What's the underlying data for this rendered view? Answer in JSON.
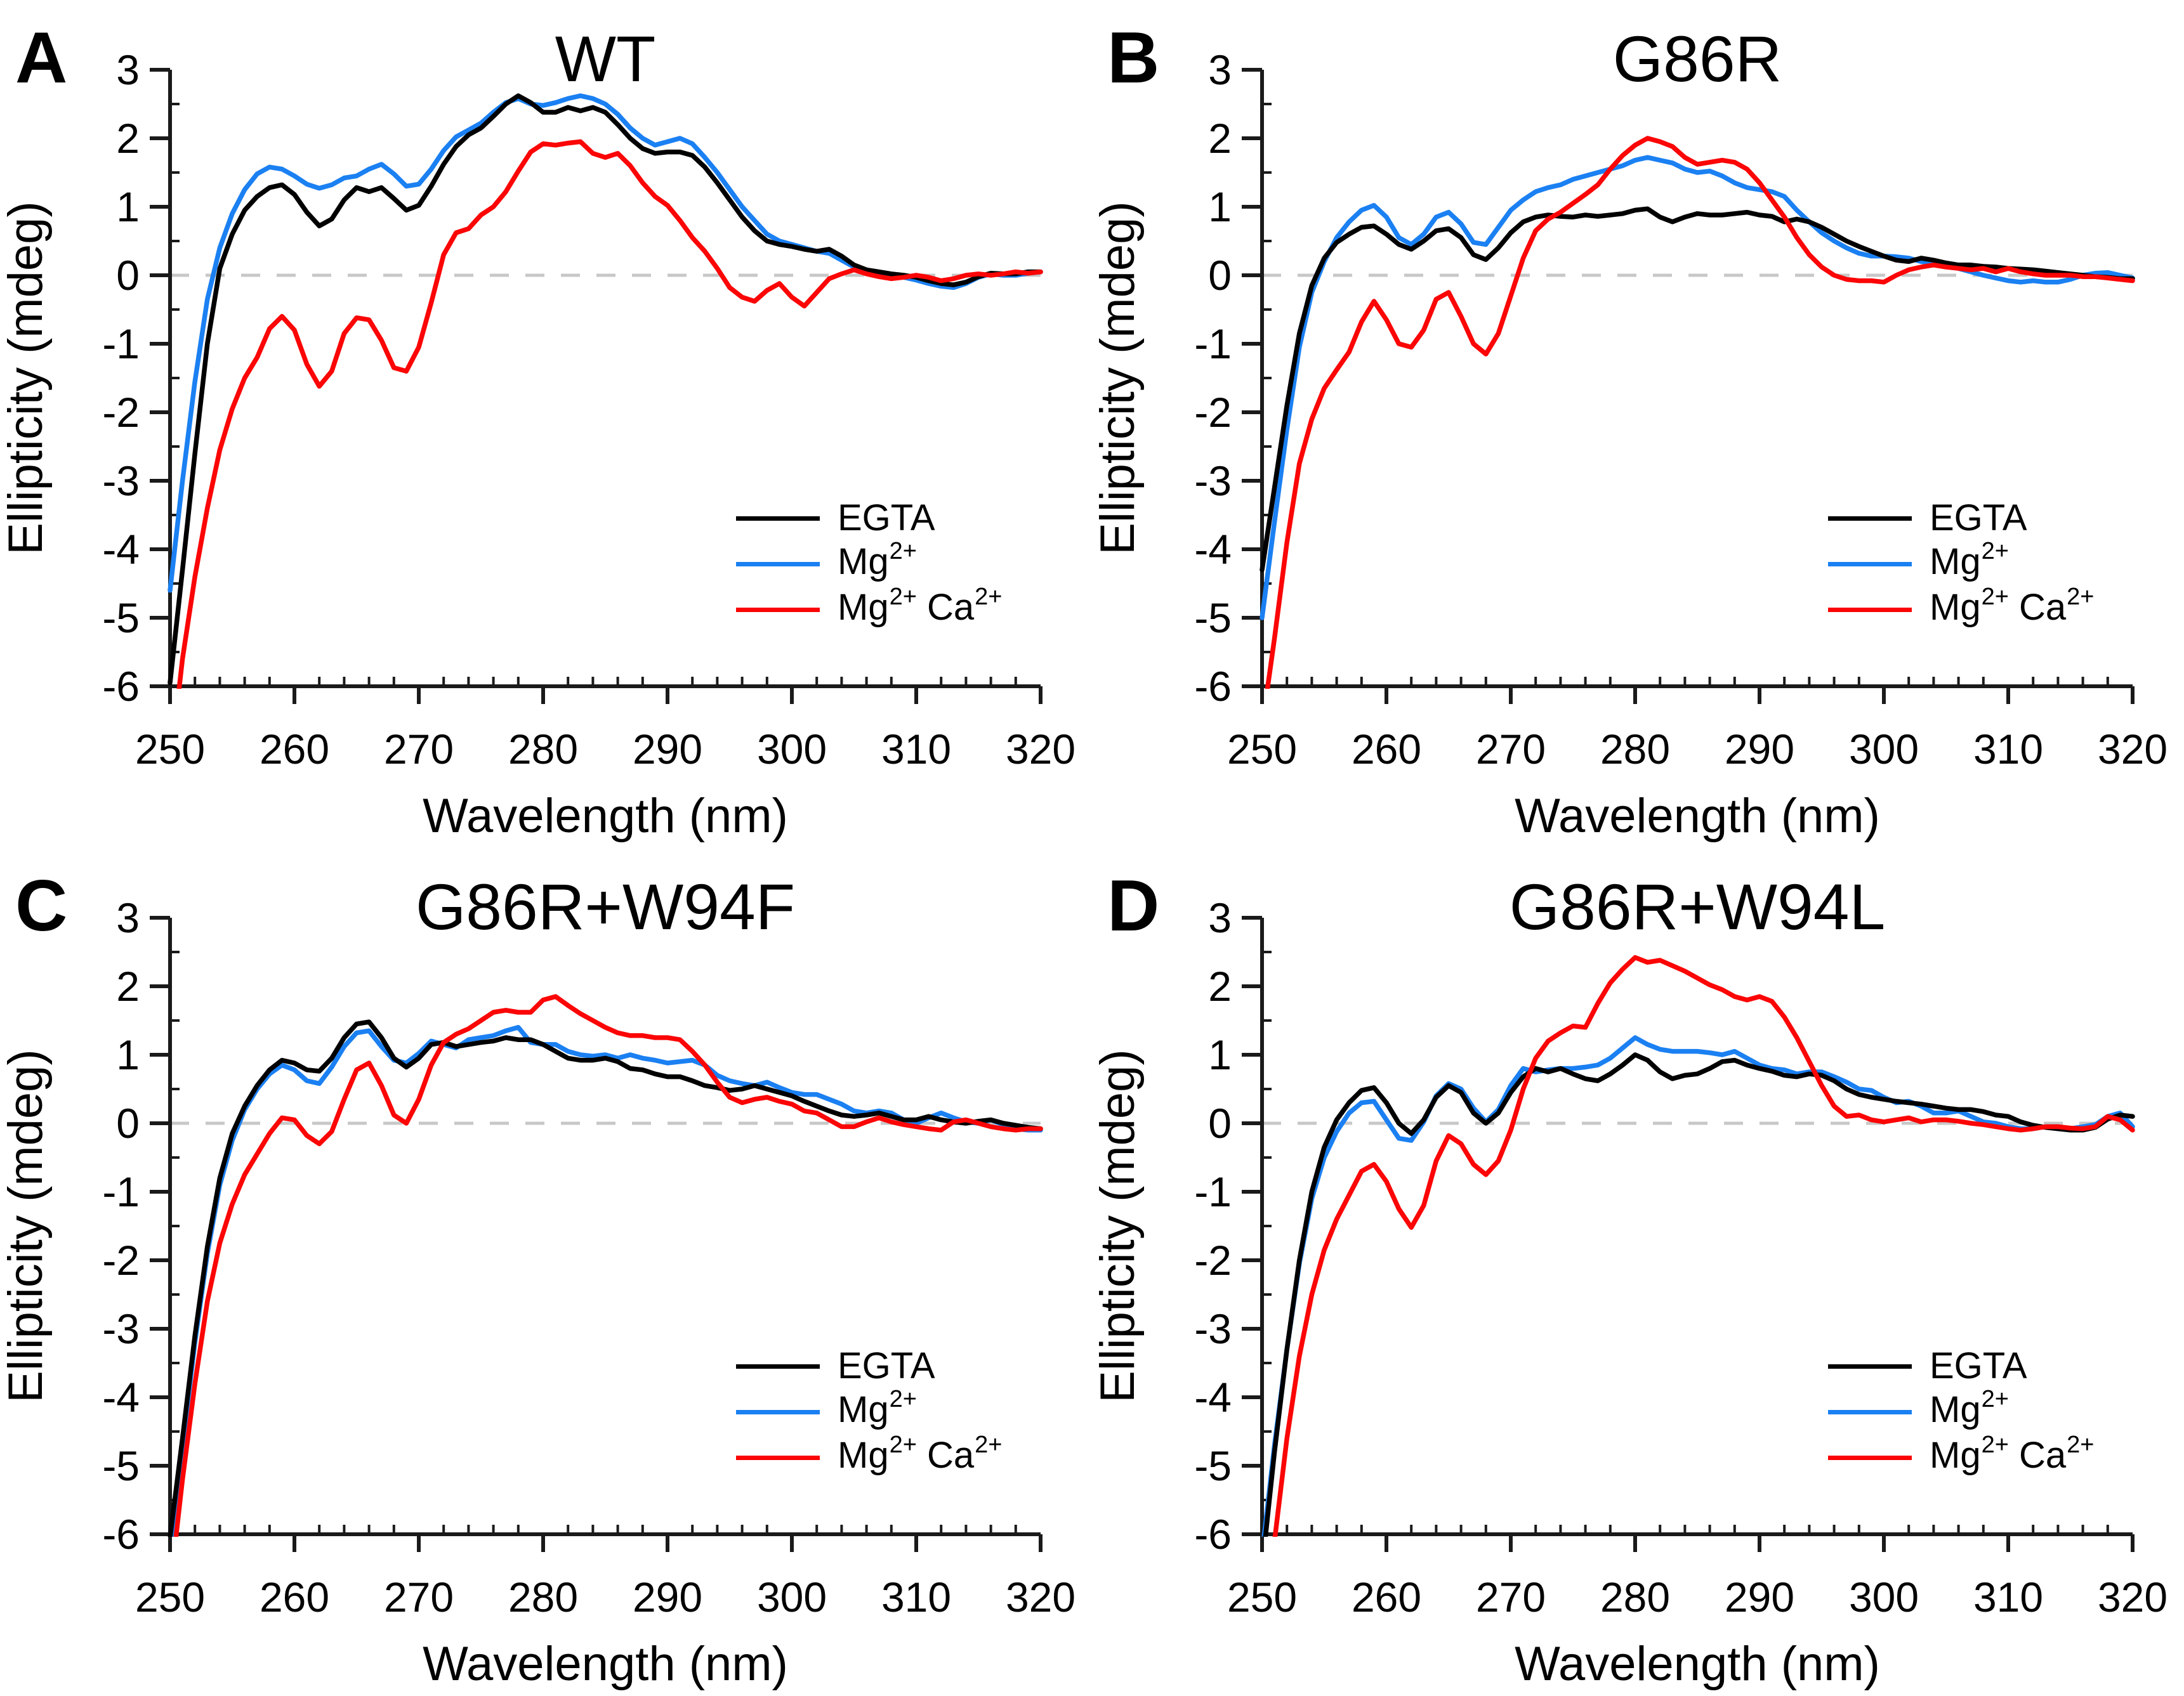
{
  "figure": {
    "panel_letters": [
      "A",
      "B",
      "C",
      "D"
    ],
    "colors": {
      "egta": "#000000",
      "mg": "#1b80f2",
      "mgca": "#fb0505",
      "axis": "#1a1a1a",
      "zero_line": "#c8c8c8"
    },
    "legend": {
      "position": "inside-right",
      "items": [
        {
          "name": "EGTA",
          "parts": [
            [
              "EGTA",
              0
            ]
          ]
        },
        {
          "name": "Mg2+",
          "parts": [
            [
              "Mg",
              0
            ],
            [
              "2+",
              1
            ]
          ]
        },
        {
          "name": "Mg2+ Ca2+",
          "parts": [
            [
              "Mg",
              0
            ],
            [
              "2+",
              1
            ],
            [
              " Ca",
              0
            ],
            [
              "2+",
              1
            ]
          ]
        }
      ]
    }
  },
  "chart_data": [
    {
      "type": "line",
      "panel": "A",
      "title": "WT",
      "xlabel": "Wavelength (nm)",
      "ylabel": "Ellipticity (mdeg)",
      "xlim": [
        250,
        320
      ],
      "ylim": [
        -6,
        3
      ],
      "x_major": 10,
      "x_minor": 2,
      "y_major": 1,
      "y_minor": 0.5,
      "grid": false,
      "zero_line_dashed": true,
      "x_start": 250,
      "x_step": 1,
      "series": [
        {
          "name": "EGTA",
          "color": "#000000",
          "values": [
            -5.95,
            -4.3,
            -2.6,
            -1.0,
            0.1,
            0.6,
            0.95,
            1.15,
            1.28,
            1.32,
            1.18,
            0.92,
            0.72,
            0.82,
            1.1,
            1.28,
            1.22,
            1.28,
            1.12,
            0.95,
            1.02,
            1.3,
            1.62,
            1.88,
            2.05,
            2.15,
            2.32,
            2.5,
            2.62,
            2.52,
            2.38,
            2.38,
            2.45,
            2.4,
            2.45,
            2.38,
            2.2,
            2.0,
            1.85,
            1.78,
            1.8,
            1.8,
            1.75,
            1.58,
            1.35,
            1.1,
            0.85,
            0.65,
            0.5,
            0.45,
            0.42,
            0.38,
            0.35,
            0.38,
            0.28,
            0.15,
            0.08,
            0.05,
            0.02,
            0.0,
            -0.03,
            -0.08,
            -0.12,
            -0.14,
            -0.1,
            -0.02,
            0.03,
            0.02,
            0.02,
            0.05,
            0.05
          ]
        },
        {
          "name": "Mg2+",
          "color": "#1b80f2",
          "values": [
            -4.6,
            -3.0,
            -1.55,
            -0.35,
            0.4,
            0.9,
            1.25,
            1.48,
            1.58,
            1.55,
            1.45,
            1.33,
            1.27,
            1.32,
            1.42,
            1.45,
            1.55,
            1.62,
            1.48,
            1.3,
            1.33,
            1.55,
            1.82,
            2.02,
            2.12,
            2.22,
            2.38,
            2.52,
            2.58,
            2.5,
            2.48,
            2.52,
            2.58,
            2.62,
            2.58,
            2.5,
            2.35,
            2.15,
            2.0,
            1.9,
            1.95,
            2.0,
            1.92,
            1.72,
            1.5,
            1.25,
            1.0,
            0.8,
            0.6,
            0.5,
            0.45,
            0.4,
            0.35,
            0.32,
            0.22,
            0.12,
            0.06,
            0.03,
            0.0,
            -0.03,
            -0.07,
            -0.12,
            -0.16,
            -0.18,
            -0.12,
            -0.03,
            0.02,
            0.0,
            0.0,
            0.03,
            0.05
          ]
        },
        {
          "name": "Mg2+ Ca2+",
          "color": "#fb0505",
          "values": [
            -7.2,
            -5.6,
            -4.4,
            -3.4,
            -2.55,
            -1.95,
            -1.5,
            -1.2,
            -0.78,
            -0.6,
            -0.8,
            -1.3,
            -1.62,
            -1.4,
            -0.85,
            -0.62,
            -0.65,
            -0.95,
            -1.35,
            -1.4,
            -1.05,
            -0.4,
            0.3,
            0.62,
            0.68,
            0.88,
            1.0,
            1.22,
            1.52,
            1.8,
            1.92,
            1.9,
            1.93,
            1.95,
            1.78,
            1.72,
            1.78,
            1.6,
            1.35,
            1.15,
            1.02,
            0.8,
            0.55,
            0.35,
            0.1,
            -0.18,
            -0.32,
            -0.38,
            -0.22,
            -0.12,
            -0.32,
            -0.45,
            -0.25,
            -0.05,
            0.02,
            0.08,
            0.02,
            -0.02,
            -0.05,
            -0.03,
            0.0,
            -0.03,
            -0.08,
            -0.05,
            0.0,
            0.02,
            0.0,
            0.02,
            0.05,
            0.03,
            0.05
          ]
        }
      ]
    },
    {
      "type": "line",
      "panel": "B",
      "title": "G86R",
      "xlabel": "Wavelength (nm)",
      "ylabel": "Ellipticity (mdeg)",
      "xlim": [
        250,
        320
      ],
      "ylim": [
        -6,
        3
      ],
      "x_major": 10,
      "x_minor": 2,
      "y_major": 1,
      "y_minor": 0.5,
      "grid": false,
      "zero_line_dashed": true,
      "x_start": 250,
      "x_step": 1,
      "series": [
        {
          "name": "EGTA",
          "color": "#000000",
          "values": [
            -4.3,
            -3.1,
            -1.9,
            -0.85,
            -0.15,
            0.25,
            0.48,
            0.6,
            0.7,
            0.72,
            0.6,
            0.45,
            0.38,
            0.5,
            0.65,
            0.68,
            0.55,
            0.3,
            0.23,
            0.4,
            0.62,
            0.78,
            0.85,
            0.88,
            0.86,
            0.85,
            0.88,
            0.86,
            0.88,
            0.9,
            0.95,
            0.97,
            0.85,
            0.78,
            0.85,
            0.9,
            0.88,
            0.88,
            0.9,
            0.92,
            0.88,
            0.86,
            0.78,
            0.82,
            0.78,
            0.7,
            0.6,
            0.5,
            0.42,
            0.35,
            0.28,
            0.22,
            0.2,
            0.25,
            0.22,
            0.18,
            0.15,
            0.15,
            0.13,
            0.12,
            0.1,
            0.09,
            0.08,
            0.06,
            0.04,
            0.02,
            0.0,
            -0.02,
            -0.03,
            -0.05,
            -0.05
          ]
        },
        {
          "name": "Mg2+",
          "color": "#1b80f2",
          "values": [
            -5.0,
            -3.6,
            -2.25,
            -1.05,
            -0.25,
            0.2,
            0.55,
            0.78,
            0.95,
            1.02,
            0.85,
            0.55,
            0.45,
            0.6,
            0.85,
            0.92,
            0.75,
            0.48,
            0.45,
            0.7,
            0.95,
            1.1,
            1.22,
            1.28,
            1.32,
            1.4,
            1.45,
            1.5,
            1.55,
            1.6,
            1.68,
            1.72,
            1.68,
            1.64,
            1.55,
            1.5,
            1.52,
            1.45,
            1.35,
            1.28,
            1.25,
            1.22,
            1.15,
            0.95,
            0.78,
            0.62,
            0.5,
            0.4,
            0.32,
            0.28,
            0.28,
            0.27,
            0.25,
            0.2,
            0.18,
            0.15,
            0.1,
            0.05,
            0.0,
            -0.04,
            -0.08,
            -0.1,
            -0.08,
            -0.1,
            -0.1,
            -0.06,
            0.0,
            0.03,
            0.04,
            0.0,
            -0.04
          ]
        },
        {
          "name": "Mg2+ Ca2+",
          "color": "#fb0505",
          "values": [
            -6.6,
            -5.3,
            -3.9,
            -2.75,
            -2.1,
            -1.65,
            -1.38,
            -1.12,
            -0.68,
            -0.38,
            -0.65,
            -1.0,
            -1.05,
            -0.8,
            -0.35,
            -0.25,
            -0.6,
            -1.0,
            -1.15,
            -0.85,
            -0.3,
            0.25,
            0.65,
            0.82,
            0.92,
            1.05,
            1.18,
            1.32,
            1.55,
            1.75,
            1.9,
            2.0,
            1.95,
            1.88,
            1.72,
            1.62,
            1.65,
            1.68,
            1.65,
            1.55,
            1.35,
            1.1,
            0.85,
            0.55,
            0.3,
            0.12,
            0.0,
            -0.06,
            -0.08,
            -0.08,
            -0.1,
            0.0,
            0.08,
            0.12,
            0.15,
            0.12,
            0.1,
            0.08,
            0.1,
            0.05,
            0.1,
            0.05,
            0.02,
            0.0,
            0.0,
            0.0,
            -0.02,
            -0.02,
            -0.04,
            -0.06,
            -0.08
          ]
        }
      ]
    },
    {
      "type": "line",
      "panel": "C",
      "title": "G86R+W94F",
      "xlabel": "Wavelength (nm)",
      "ylabel": "Ellipticity (mdeg)",
      "xlim": [
        250,
        320
      ],
      "ylim": [
        -6,
        3
      ],
      "x_major": 10,
      "x_minor": 2,
      "y_major": 1,
      "y_minor": 0.5,
      "grid": false,
      "zero_line_dashed": true,
      "x_start": 250,
      "x_step": 1,
      "series": [
        {
          "name": "EGTA",
          "color": "#000000",
          "values": [
            -6.05,
            -4.6,
            -3.1,
            -1.8,
            -0.8,
            -0.15,
            0.25,
            0.55,
            0.78,
            0.92,
            0.88,
            0.78,
            0.76,
            0.95,
            1.25,
            1.45,
            1.48,
            1.25,
            0.95,
            0.82,
            0.95,
            1.15,
            1.18,
            1.12,
            1.15,
            1.18,
            1.2,
            1.25,
            1.22,
            1.22,
            1.15,
            1.05,
            0.95,
            0.92,
            0.92,
            0.95,
            0.9,
            0.8,
            0.78,
            0.72,
            0.68,
            0.68,
            0.62,
            0.55,
            0.52,
            0.48,
            0.5,
            0.55,
            0.5,
            0.45,
            0.4,
            0.32,
            0.25,
            0.18,
            0.12,
            0.1,
            0.12,
            0.15,
            0.1,
            0.05,
            0.05,
            0.1,
            0.05,
            0.02,
            0.0,
            0.03,
            0.05,
            0.0,
            -0.03,
            -0.06,
            -0.08
          ]
        },
        {
          "name": "Mg2+",
          "color": "#1b80f2",
          "values": [
            -6.25,
            -4.7,
            -3.2,
            -1.9,
            -0.9,
            -0.25,
            0.2,
            0.5,
            0.72,
            0.85,
            0.78,
            0.62,
            0.58,
            0.82,
            1.12,
            1.32,
            1.35,
            1.12,
            0.92,
            0.88,
            1.02,
            1.2,
            1.15,
            1.1,
            1.22,
            1.25,
            1.28,
            1.35,
            1.4,
            1.18,
            1.15,
            1.15,
            1.05,
            1.0,
            0.98,
            1.0,
            0.95,
            1.0,
            0.95,
            0.92,
            0.88,
            0.9,
            0.92,
            0.85,
            0.7,
            0.62,
            0.58,
            0.55,
            0.6,
            0.52,
            0.45,
            0.42,
            0.42,
            0.35,
            0.28,
            0.18,
            0.15,
            0.18,
            0.15,
            0.05,
            0.0,
            0.08,
            0.15,
            0.08,
            0.02,
            0.0,
            0.05,
            -0.02,
            -0.08,
            -0.1,
            -0.1
          ]
        },
        {
          "name": "Mg2+ Ca2+",
          "color": "#fb0505",
          "values": [
            -6.8,
            -5.2,
            -3.8,
            -2.6,
            -1.75,
            -1.18,
            -0.75,
            -0.45,
            -0.15,
            0.08,
            0.05,
            -0.18,
            -0.3,
            -0.12,
            0.35,
            0.78,
            0.88,
            0.55,
            0.12,
            0.0,
            0.35,
            0.85,
            1.18,
            1.3,
            1.38,
            1.5,
            1.62,
            1.65,
            1.62,
            1.62,
            1.8,
            1.85,
            1.72,
            1.6,
            1.5,
            1.4,
            1.32,
            1.28,
            1.28,
            1.25,
            1.25,
            1.22,
            1.05,
            0.85,
            0.6,
            0.38,
            0.3,
            0.35,
            0.38,
            0.32,
            0.28,
            0.18,
            0.15,
            0.05,
            -0.05,
            -0.05,
            0.02,
            0.08,
            0.02,
            -0.02,
            -0.05,
            -0.08,
            -0.1,
            0.02,
            0.05,
            0.0,
            -0.05,
            -0.08,
            -0.1,
            -0.08,
            -0.08
          ]
        }
      ]
    },
    {
      "type": "line",
      "panel": "D",
      "title": "G86R+W94L",
      "xlabel": "Wavelength (nm)",
      "ylabel": "Ellipticity (mdeg)",
      "xlim": [
        250,
        320
      ],
      "ylim": [
        -6,
        3
      ],
      "x_major": 10,
      "x_minor": 2,
      "y_major": 1,
      "y_minor": 0.5,
      "grid": false,
      "zero_line_dashed": true,
      "x_start": 250,
      "x_step": 1,
      "series": [
        {
          "name": "EGTA",
          "color": "#000000",
          "values": [
            -6.5,
            -4.8,
            -3.3,
            -2.0,
            -1.0,
            -0.35,
            0.05,
            0.3,
            0.48,
            0.52,
            0.3,
            0.0,
            -0.15,
            0.05,
            0.38,
            0.55,
            0.45,
            0.15,
            0.0,
            0.15,
            0.45,
            0.68,
            0.8,
            0.75,
            0.8,
            0.72,
            0.65,
            0.62,
            0.72,
            0.85,
            1.0,
            0.92,
            0.75,
            0.65,
            0.7,
            0.72,
            0.8,
            0.9,
            0.92,
            0.85,
            0.8,
            0.76,
            0.7,
            0.68,
            0.72,
            0.7,
            0.62,
            0.5,
            0.42,
            0.38,
            0.35,
            0.32,
            0.3,
            0.28,
            0.25,
            0.22,
            0.2,
            0.2,
            0.17,
            0.12,
            0.1,
            0.02,
            -0.03,
            -0.06,
            -0.08,
            -0.1,
            -0.1,
            -0.06,
            0.06,
            0.12,
            0.1
          ]
        },
        {
          "name": "Mg2+",
          "color": "#1b80f2",
          "values": [
            -6.3,
            -4.7,
            -3.3,
            -2.05,
            -1.1,
            -0.5,
            -0.12,
            0.15,
            0.3,
            0.32,
            0.05,
            -0.22,
            -0.25,
            0.02,
            0.4,
            0.58,
            0.5,
            0.22,
            0.02,
            0.2,
            0.55,
            0.8,
            0.75,
            0.78,
            0.8,
            0.8,
            0.82,
            0.85,
            0.95,
            1.1,
            1.25,
            1.15,
            1.08,
            1.05,
            1.05,
            1.05,
            1.03,
            1.0,
            1.05,
            0.95,
            0.85,
            0.8,
            0.78,
            0.72,
            0.75,
            0.75,
            0.68,
            0.6,
            0.5,
            0.48,
            0.38,
            0.3,
            0.32,
            0.25,
            0.15,
            0.15,
            0.18,
            0.1,
            0.02,
            0.0,
            -0.05,
            -0.08,
            -0.08,
            -0.05,
            -0.05,
            -0.08,
            -0.05,
            -0.02,
            0.1,
            0.15,
            -0.05
          ]
        },
        {
          "name": "Mg2+ Ca2+",
          "color": "#fb0505",
          "values": [
            -7.6,
            -6.1,
            -4.6,
            -3.4,
            -2.5,
            -1.85,
            -1.4,
            -1.05,
            -0.7,
            -0.6,
            -0.85,
            -1.25,
            -1.52,
            -1.2,
            -0.55,
            -0.18,
            -0.3,
            -0.6,
            -0.75,
            -0.55,
            -0.1,
            0.5,
            0.95,
            1.2,
            1.32,
            1.42,
            1.4,
            1.75,
            2.05,
            2.25,
            2.42,
            2.35,
            2.38,
            2.3,
            2.22,
            2.12,
            2.02,
            1.95,
            1.85,
            1.8,
            1.85,
            1.78,
            1.55,
            1.25,
            0.9,
            0.55,
            0.25,
            0.1,
            0.12,
            0.05,
            0.02,
            0.05,
            0.08,
            0.02,
            0.05,
            0.05,
            0.03,
            0.0,
            -0.02,
            -0.05,
            -0.08,
            -0.1,
            -0.08,
            -0.05,
            -0.05,
            -0.07,
            -0.08,
            -0.05,
            0.1,
            0.05,
            -0.1
          ]
        }
      ]
    }
  ]
}
